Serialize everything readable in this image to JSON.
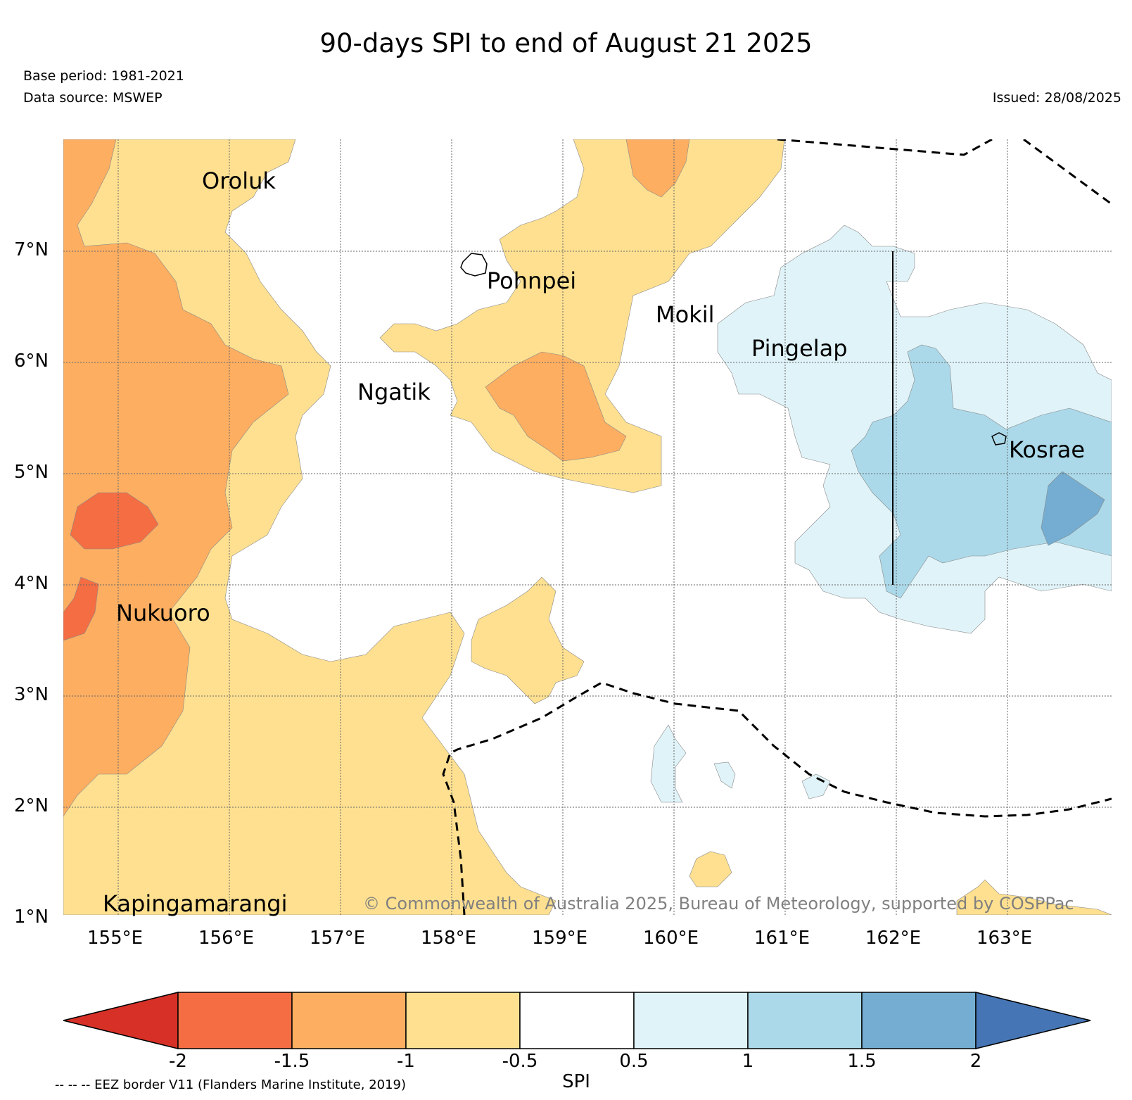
{
  "title": "90-days SPI to end of August 21 2025",
  "base_period": "Base period: 1981-2021",
  "data_source": "Data source: MSWEP",
  "issued": "Issued: 28/08/2025",
  "copyright": "© Commonwealth of Australia 2025, Bureau of Meteorology, supported by COSPPac",
  "eez_note": "-- -- -- EEZ border V11 (Flanders Marine Institute, 2019)",
  "lat_labels": [
    "7°N",
    "6°N",
    "5°N",
    "4°N",
    "3°N",
    "2°N",
    "1°N"
  ],
  "lon_labels": [
    "155°E",
    "156°E",
    "157°E",
    "158°E",
    "159°E",
    "160°E",
    "161°E",
    "162°E",
    "163°E"
  ],
  "places": {
    "oroluk": "Oroluk",
    "pohnpei": "Pohnpei",
    "mokil": "Mokil",
    "pingelap": "Pingelap",
    "ngatik": "Ngatik",
    "kosrae": "Kosrae",
    "nukuoro": "Nukuoro",
    "kapinga": "Kapingamarangi"
  },
  "colorbar": {
    "label": "SPI",
    "ticks": [
      "-2",
      "-1.5",
      "-1",
      "-0.5",
      "0.5",
      "1",
      "1.5",
      "2"
    ],
    "colors": [
      "#d73027",
      "#f46d43",
      "#fdae61",
      "#fee090",
      "#ffffff",
      "#e0f3f8",
      "#abd9e9",
      "#74add1",
      "#4575b4"
    ]
  }
}
